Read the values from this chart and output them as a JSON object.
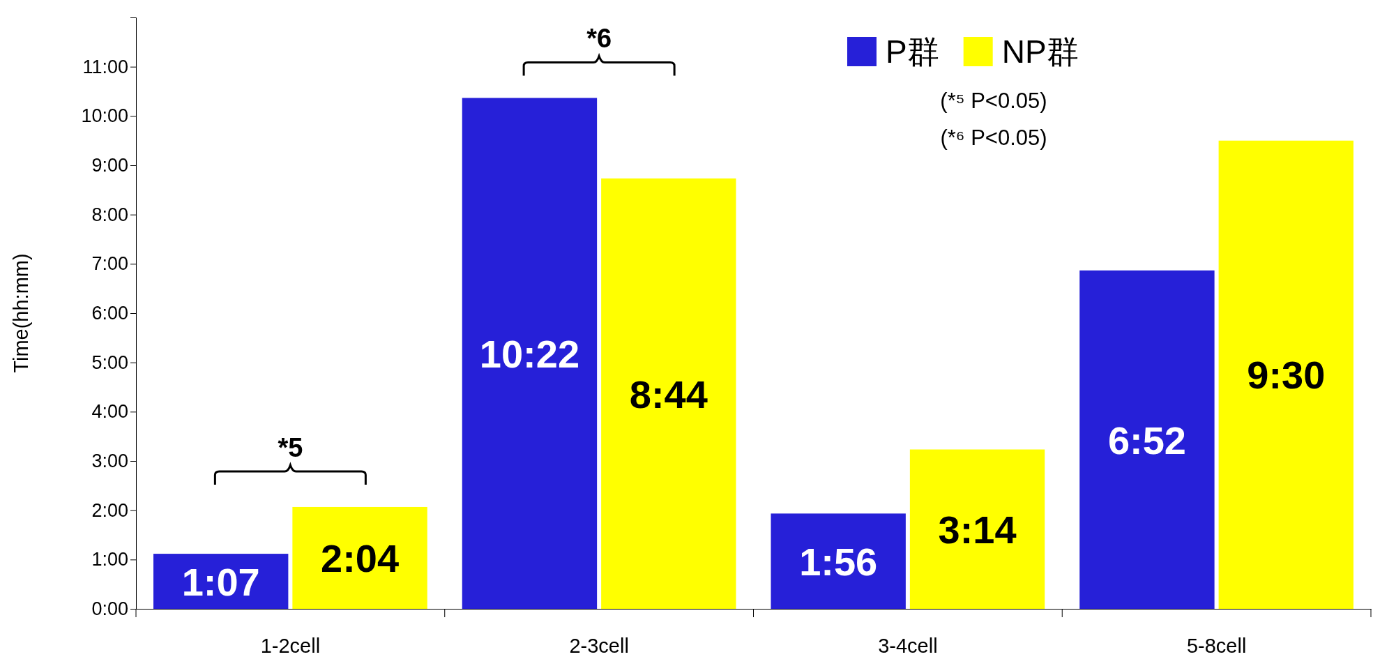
{
  "chart_data": {
    "type": "bar",
    "ylabel": "Time(hh:mm)",
    "categories": [
      "1-2cell",
      "2-3cell",
      "3-4cell",
      "5-8cell"
    ],
    "series": [
      {
        "name": "P群",
        "color": "#2620d8",
        "values": [
          1.1167,
          10.3667,
          1.9333,
          6.8667
        ],
        "value_labels": [
          "1:07",
          "10:22",
          "1:56",
          "6:52"
        ]
      },
      {
        "name": "NP群",
        "color": "#ffff00",
        "values": [
          2.0667,
          8.7333,
          3.2333,
          9.5
        ],
        "value_labels": [
          "2:04",
          "8:44",
          "3:14",
          "9:30"
        ]
      }
    ],
    "ylim": [
      0,
      12
    ],
    "yticks": [
      {
        "value": 0,
        "label": "0:00"
      },
      {
        "value": 1,
        "label": "1:00"
      },
      {
        "value": 2,
        "label": "2:00"
      },
      {
        "value": 3,
        "label": "3:00"
      },
      {
        "value": 4,
        "label": "4:00"
      },
      {
        "value": 5,
        "label": "5:00"
      },
      {
        "value": 6,
        "label": "6:00"
      },
      {
        "value": 7,
        "label": "7:00"
      },
      {
        "value": 8,
        "label": "8:00"
      },
      {
        "value": 9,
        "label": "9:00"
      },
      {
        "value": 10,
        "label": "10:00"
      },
      {
        "value": 11,
        "label": "11:00"
      }
    ],
    "grid": false,
    "legend": "top right",
    "annotations": [
      "*5",
      "*6",
      "(*⁵ P<0.05)",
      "(*⁶ P<0.05)"
    ]
  }
}
